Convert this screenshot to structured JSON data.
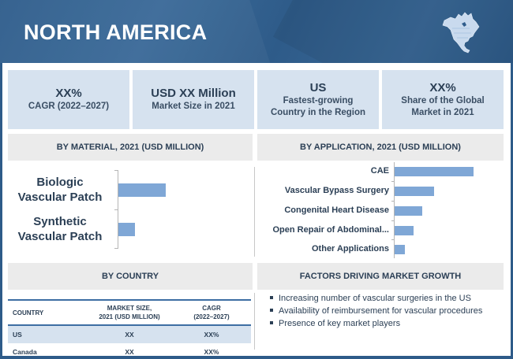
{
  "header": {
    "title": "NORTH AMERICA",
    "map_icon": "north-america-map-icon"
  },
  "stats": [
    {
      "value": "XX%",
      "label": "CAGR (2022–2027)"
    },
    {
      "value": "USD XX Million",
      "label": "Market Size in 2021"
    },
    {
      "value": "US",
      "label_line1": "Fastest-growing",
      "label_line2": "Country in the Region"
    },
    {
      "value": "XX%",
      "label_line1": "Share of the Global",
      "label_line2": "Market in 2021"
    }
  ],
  "sections": {
    "material": "BY MATERIAL, 2021 (USD MILLION)",
    "application": "BY APPLICATION,  2021 (USD MILLION)",
    "country": "BY COUNTRY",
    "factors": "FACTORS DRIVING MARKET GROWTH"
  },
  "chart_data": [
    {
      "type": "bar",
      "orientation": "horizontal",
      "title": "BY MATERIAL, 2021 (USD MILLION)",
      "categories": [
        {
          "line1": "Biologic",
          "line2": "Vascular Patch"
        },
        {
          "line1": "Synthetic",
          "line2": "Vascular Patch"
        }
      ],
      "values": [
        60,
        21
      ],
      "xlim": [
        0,
        100
      ],
      "bar_color": "#7fa7d6",
      "grid": false
    },
    {
      "type": "bar",
      "orientation": "horizontal",
      "title": "BY APPLICATION,  2021 (USD MILLION)",
      "categories": [
        "CAE",
        "Vascular Bypass Surgery",
        "Congenital Heart Disease",
        "Open Repair of Abdominal...",
        "Other Applications"
      ],
      "values": [
        100,
        50,
        35,
        24,
        13
      ],
      "xlim": [
        0,
        100
      ],
      "bar_color": "#7fa7d6",
      "grid": false
    }
  ],
  "country_table": {
    "headers": {
      "country": "COUNTRY",
      "size_line1": "MARKET SIZE,",
      "size_line2": "2021 (USD  MILLION)",
      "cagr_line1": "CAGR",
      "cagr_line2": "(2022–2027)"
    },
    "rows": [
      {
        "country": "US",
        "size": "XX",
        "cagr": "XX%"
      },
      {
        "country": "Canada",
        "size": "XX",
        "cagr": "XX%"
      }
    ]
  },
  "factors": [
    "Increasing number of vascular surgeries in the US",
    "Availability of reimbursement for vascular procedures",
    "Presence of key market players"
  ],
  "colors": {
    "banner": "#2f5d8c",
    "stat_bg": "#d6e2ef",
    "section_bg": "#ebebeb",
    "text": "#2b3f55",
    "bar": "#7fa7d6",
    "rule": "#3d6ea3"
  }
}
